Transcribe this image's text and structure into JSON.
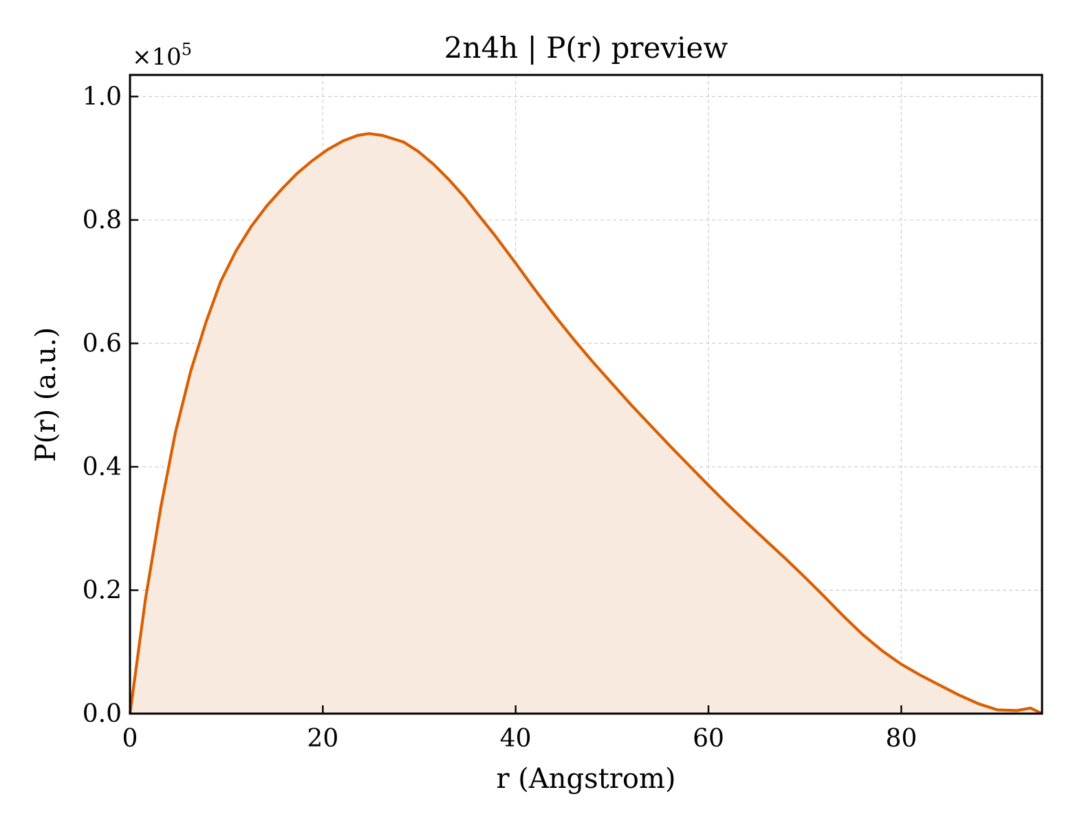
{
  "chart_data": {
    "type": "area",
    "title": "2n4h | P(r) preview",
    "xlabel": "r (Angstrom)",
    "ylabel": "P(r) (a.u.)",
    "y_scale_label": "×10",
    "y_scale_exponent": "5",
    "xlim": [
      0,
      94.6
    ],
    "ylim": [
      0,
      1.035
    ],
    "y_multiplier": 100000,
    "x_ticks": [
      0,
      20,
      40,
      60,
      80
    ],
    "x_tick_labels": [
      "0",
      "20",
      "40",
      "60",
      "80"
    ],
    "y_ticks": [
      0.0,
      0.2,
      0.4,
      0.6,
      0.8,
      1.0
    ],
    "y_tick_labels": [
      "0.0",
      "0.2",
      "0.4",
      "0.6",
      "0.8",
      "1.0"
    ],
    "grid": true,
    "line_color": "#d95f02",
    "fill_color": "#f9eadf",
    "series": [
      {
        "x": [
          0,
          1.6,
          3.2,
          4.7,
          6.3,
          7.9,
          9.4,
          11.0,
          12.6,
          14.2,
          15.8,
          17.3,
          18.9,
          20.5,
          22.1,
          23.6,
          24.8,
          26.2,
          28.4,
          29.9,
          31.5,
          33.1,
          34.7,
          36.2,
          37.8,
          40.0,
          42.0,
          44.0,
          46.0,
          48.0,
          50.0,
          52.0,
          54.0,
          56.0,
          58.0,
          60.0,
          62.0,
          64.0,
          66.0,
          68.0,
          70.0,
          72.0,
          74.0,
          76.0,
          78.0,
          80.0,
          82.0,
          84.0,
          86.0,
          88.0,
          90.0,
          92.0,
          93.4,
          94.6
        ],
        "y": [
          0.0,
          0.185,
          0.335,
          0.455,
          0.555,
          0.635,
          0.7,
          0.75,
          0.79,
          0.823,
          0.851,
          0.875,
          0.896,
          0.914,
          0.928,
          0.937,
          0.94,
          0.937,
          0.926,
          0.911,
          0.89,
          0.865,
          0.837,
          0.807,
          0.776,
          0.73,
          0.687,
          0.646,
          0.607,
          0.57,
          0.535,
          0.5,
          0.467,
          0.434,
          0.402,
          0.37,
          0.339,
          0.309,
          0.28,
          0.251,
          0.221,
          0.19,
          0.158,
          0.128,
          0.102,
          0.08,
          0.062,
          0.046,
          0.03,
          0.016,
          0.006,
          0.005,
          0.009,
          0.0
        ]
      }
    ]
  }
}
